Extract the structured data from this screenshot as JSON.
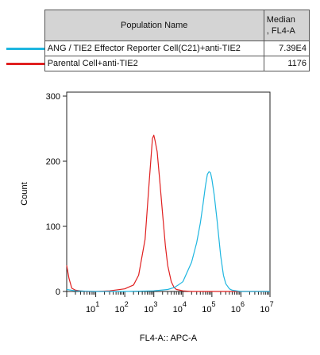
{
  "legend": {
    "header_name": "Population Name",
    "header_median_line1": "Median",
    "header_median_line2": ", FL4-A",
    "rows": [
      {
        "label": "ANG / TIE2 Effector Reporter Cell(C21)+anti-TIE2",
        "median": "7.39E4",
        "color": "#1eb6e0"
      },
      {
        "label": "Parental Cell+anti-TIE2",
        "median": "1176",
        "color": "#e02020"
      }
    ]
  },
  "chart_data": {
    "type": "line",
    "xlabel": "FL4-A:: APC-A",
    "ylabel": "Count",
    "xscale": "log",
    "xlim": [
      0,
      10000000
    ],
    "ylim": [
      0,
      300
    ],
    "yticks": [
      "0",
      "100",
      "200",
      "300"
    ],
    "xticks": [
      {
        "base": "10",
        "exp": "1"
      },
      {
        "base": "10",
        "exp": "2"
      },
      {
        "base": "10",
        "exp": "3"
      },
      {
        "base": "10",
        "exp": "4"
      },
      {
        "base": "10",
        "exp": "5"
      },
      {
        "base": "10",
        "exp": "6"
      },
      {
        "base": "10",
        "exp": "7"
      }
    ],
    "series": [
      {
        "name": "Parental Cell+anti-TIE2",
        "color": "#e02020",
        "x": [
          1,
          1.2,
          1.5,
          2,
          3,
          5,
          10,
          30,
          100,
          200,
          300,
          500,
          700,
          900,
          1000,
          1100,
          1300,
          1600,
          2000,
          2500,
          3000,
          4000,
          5000,
          6000,
          8000,
          10000,
          20000,
          100000,
          10000000
        ],
        "y": [
          40,
          20,
          5,
          2,
          1,
          0,
          0,
          1,
          4,
          10,
          25,
          80,
          170,
          235,
          240,
          232,
          215,
          170,
          120,
          70,
          40,
          15,
          6,
          3,
          2,
          1,
          0,
          0,
          0
        ]
      },
      {
        "name": "ANG / TIE2 Effector Reporter Cell(C21)+anti-TIE2",
        "color": "#1eb6e0",
        "x": [
          1,
          2,
          10,
          100,
          1000,
          3000,
          5000,
          7000,
          10000,
          20000,
          30000,
          40000,
          50000,
          60000,
          70000,
          80000,
          90000,
          100000,
          120000,
          150000,
          200000,
          250000,
          300000,
          400000,
          500000,
          700000,
          1000000,
          2000000,
          10000000
        ],
        "y": [
          3,
          1,
          0,
          0,
          1,
          3,
          6,
          10,
          15,
          45,
          75,
          105,
          135,
          162,
          180,
          184,
          182,
          172,
          148,
          110,
          55,
          25,
          12,
          4,
          2,
          1,
          0,
          0,
          0
        ]
      }
    ]
  }
}
